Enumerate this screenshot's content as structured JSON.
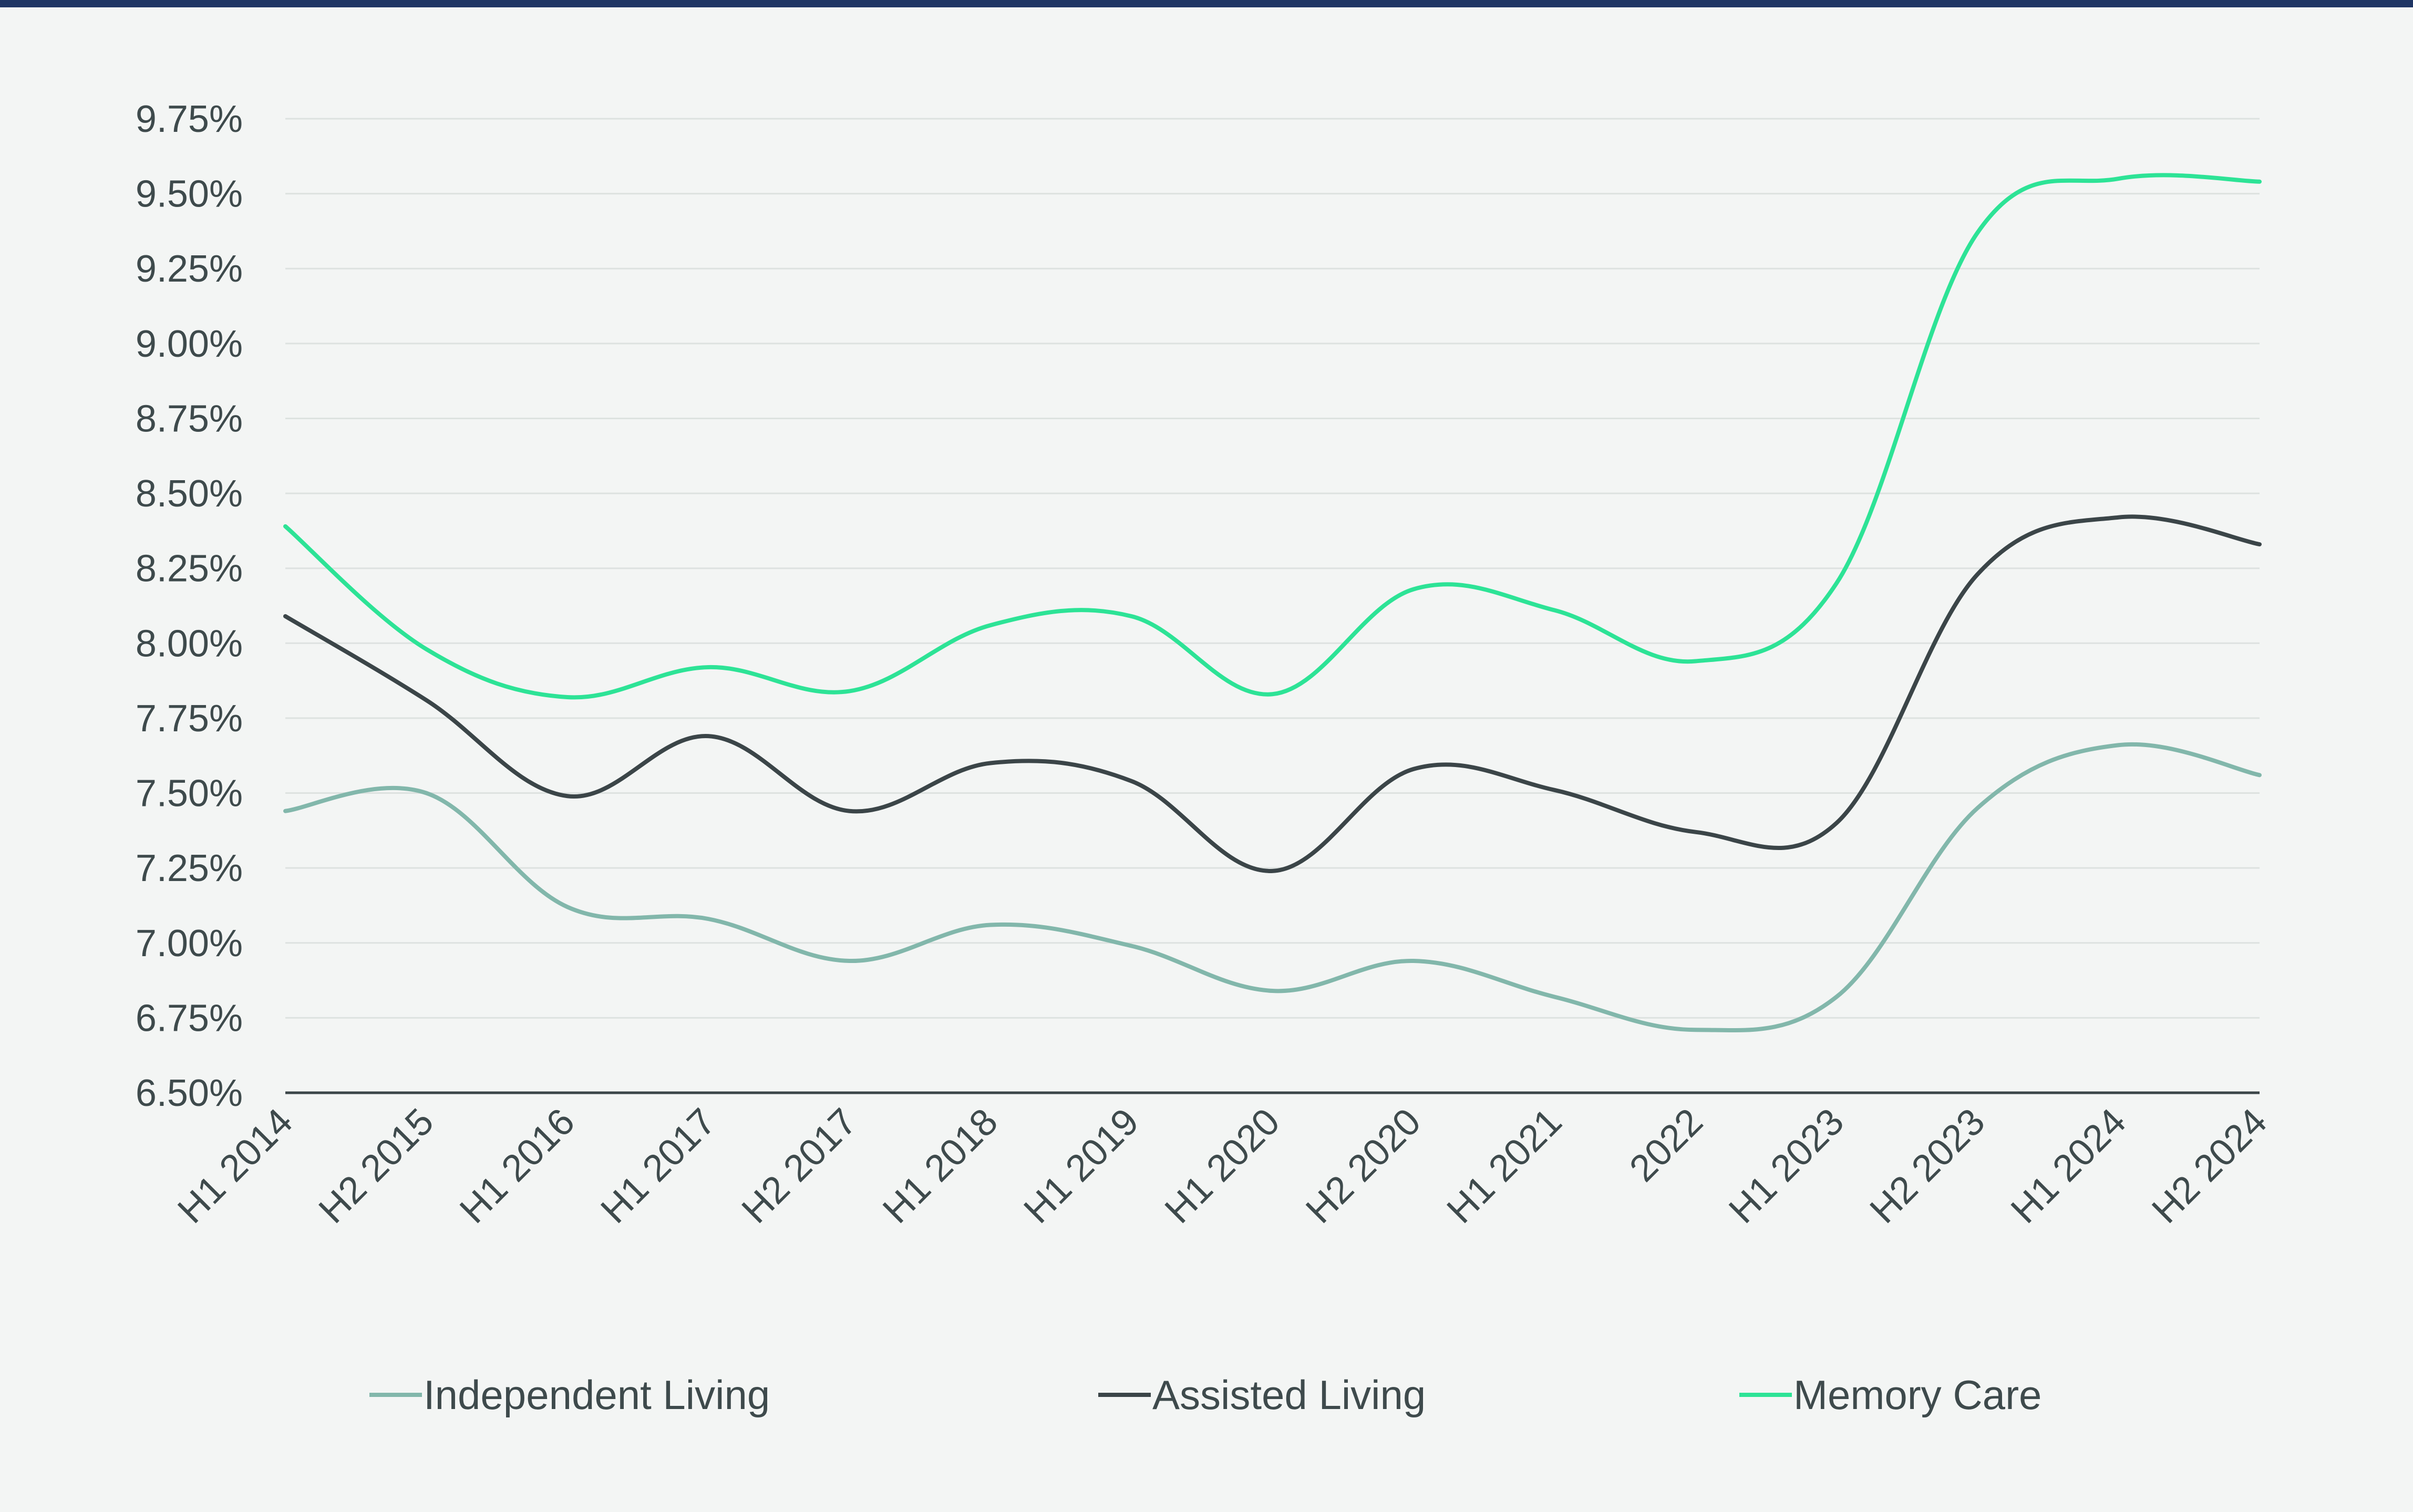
{
  "chart_data": {
    "type": "line",
    "title": "",
    "xlabel": "",
    "ylabel": "",
    "categories": [
      "H1 2014",
      "H2 2015",
      "H1 2016",
      "H1 2017",
      "H2 2017",
      "H1 2018",
      "H1 2019",
      "H1 2020",
      "H2 2020",
      "H1 2021",
      "2022",
      "H1 2023",
      "H2 2023",
      "H1 2024",
      "H2 2024"
    ],
    "y_ticks": [
      "6.50%",
      "6.75%",
      "7.00%",
      "7.25%",
      "7.50%",
      "7.75%",
      "8.00%",
      "8.25%",
      "8.50%",
      "8.75%",
      "9.00%",
      "9.25%",
      "9.50%",
      "9.75%"
    ],
    "ylim": [
      6.5,
      9.75
    ],
    "y_unit": "%",
    "grid": "horizontal",
    "legend_position": "bottom",
    "series": [
      {
        "name": "Independent Living",
        "color": "#82b7ab",
        "values": [
          7.44,
          7.5,
          7.12,
          7.08,
          6.94,
          7.06,
          6.99,
          6.84,
          6.94,
          6.82,
          6.71,
          6.82,
          7.45,
          7.66,
          7.56
        ]
      },
      {
        "name": "Assisted Living",
        "color": "#3b4548",
        "values": [
          8.09,
          7.81,
          7.49,
          7.69,
          7.44,
          7.6,
          7.54,
          7.24,
          7.58,
          7.51,
          7.37,
          7.4,
          8.23,
          8.42,
          8.33
        ]
      },
      {
        "name": "Memory Care",
        "color": "#2de396",
        "values": [
          8.39,
          7.98,
          7.82,
          7.92,
          7.84,
          8.06,
          8.09,
          7.83,
          8.18,
          8.11,
          7.94,
          8.2,
          9.37,
          9.55,
          9.54
        ]
      }
    ]
  }
}
